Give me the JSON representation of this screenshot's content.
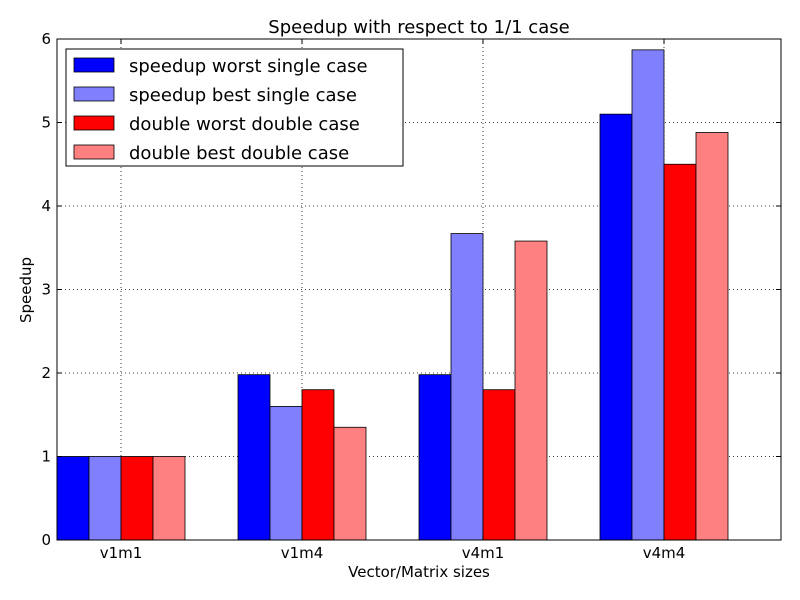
{
  "chart_data": {
    "type": "bar",
    "title": "Speedup with respect to 1/1 case",
    "xlabel": "Vector/Matrix sizes",
    "ylabel": "Speedup",
    "ylim": [
      0,
      6
    ],
    "yticks": [
      "0",
      "1",
      "2",
      "3",
      "4",
      "5",
      "6"
    ],
    "categories": [
      "v1m1",
      "v1m4",
      "v4m1",
      "v4m4"
    ],
    "grid": true,
    "legend_position": "top-left",
    "series": [
      {
        "name": "speedup worst single case",
        "color": "#0000ff",
        "values": [
          1.0,
          1.98,
          1.98,
          5.1
        ]
      },
      {
        "name": "speedup best single case",
        "color": "#8080ff",
        "values": [
          1.0,
          1.6,
          3.67,
          5.87
        ]
      },
      {
        "name": "double worst double case",
        "color": "#ff0000",
        "values": [
          1.0,
          1.8,
          1.8,
          4.5
        ]
      },
      {
        "name": "double best double case",
        "color": "#ff8080",
        "values": [
          1.0,
          1.35,
          3.58,
          4.88
        ]
      }
    ]
  }
}
